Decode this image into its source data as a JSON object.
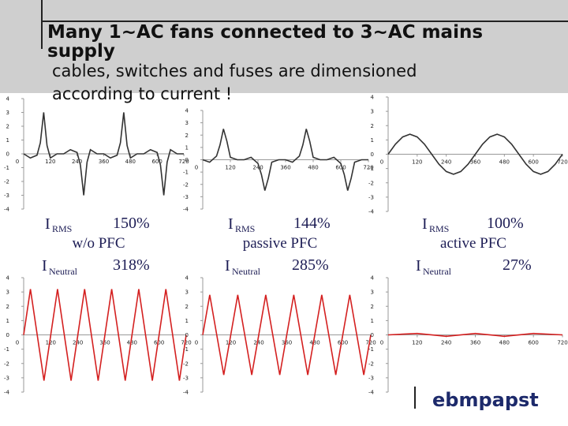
{
  "slide": {
    "title": "Many 1~AC fans connected to 3~AC mains supply",
    "subtitle": "cables, switches and fuses are dimensioned according to current !",
    "logo": "ebmpapst",
    "stats": [
      {
        "irms_label": "I",
        "irms_sub": "RMS",
        "irms_value": "150%",
        "pfc": "w/o PFC",
        "ineutral_label": "I",
        "ineutral_sub": "Neutral",
        "ineutral_value": "318%"
      },
      {
        "irms_label": "I",
        "irms_sub": "RMS",
        "irms_value": "144%",
        "pfc": "passive PFC",
        "ineutral_label": "I",
        "ineutral_sub": "Neutral",
        "ineutral_value": "285%"
      },
      {
        "irms_label": "I",
        "irms_sub": "RMS",
        "irms_value": "100%",
        "pfc": "active PFC",
        "ineutral_label": "I",
        "ineutral_sub": "Neutral",
        "ineutral_value": "27%"
      }
    ]
  },
  "chart_data": [
    {
      "type": "line",
      "color": "#333333",
      "xlim": [
        0,
        720
      ],
      "ylim": [
        -4,
        4
      ],
      "xticks": [
        0,
        120,
        240,
        360,
        480,
        600,
        720
      ],
      "yticks": [
        -4,
        -3,
        -2,
        -1,
        0,
        1,
        2,
        3,
        4
      ],
      "x": [
        0,
        30,
        60,
        75,
        90,
        105,
        120,
        150,
        180,
        210,
        240,
        255,
        270,
        285,
        300,
        330,
        360,
        390,
        420,
        435,
        450,
        465,
        480,
        510,
        540,
        570,
        600,
        615,
        630,
        645,
        660,
        690,
        720
      ],
      "values": [
        0,
        -0.3,
        -0.1,
        0.8,
        3,
        0.6,
        -0.3,
        0,
        0,
        0.3,
        0.1,
        -0.8,
        -3,
        -0.6,
        0.3,
        0,
        0,
        -0.3,
        -0.1,
        0.8,
        3,
        0.6,
        -0.3,
        0,
        0,
        0.3,
        0.1,
        -0.8,
        -3,
        -0.6,
        0.3,
        0,
        0
      ]
    },
    {
      "type": "line",
      "color": "#333333",
      "xlim": [
        0,
        720
      ],
      "ylim": [
        -4,
        4
      ],
      "xticks": [
        0,
        120,
        240,
        360,
        480,
        600,
        720
      ],
      "yticks": [
        -4,
        -3,
        -2,
        -1,
        0,
        1,
        2,
        3,
        4
      ],
      "x": [
        0,
        30,
        60,
        75,
        90,
        105,
        120,
        150,
        180,
        210,
        240,
        255,
        270,
        285,
        300,
        330,
        360,
        390,
        420,
        435,
        450,
        465,
        480,
        510,
        540,
        570,
        600,
        615,
        630,
        645,
        660,
        690,
        720
      ],
      "values": [
        0,
        -0.2,
        0.3,
        1.2,
        2.5,
        1.5,
        0.2,
        0,
        0,
        0.2,
        -0.3,
        -1.2,
        -2.5,
        -1.5,
        -0.2,
        0,
        0,
        -0.2,
        0.3,
        1.2,
        2.5,
        1.5,
        0.2,
        0,
        0,
        0.2,
        -0.3,
        -1.2,
        -2.5,
        -1.5,
        -0.2,
        0,
        0
      ]
    },
    {
      "type": "line",
      "color": "#333333",
      "xlim": [
        0,
        720
      ],
      "ylim": [
        -4,
        4
      ],
      "xticks": [
        0,
        120,
        240,
        360,
        480,
        600,
        720
      ],
      "yticks": [
        -4,
        -3,
        -2,
        -1,
        0,
        1,
        2,
        3,
        4
      ],
      "x": [
        0,
        30,
        60,
        90,
        120,
        150,
        180,
        210,
        240,
        270,
        300,
        330,
        360,
        390,
        420,
        450,
        480,
        510,
        540,
        570,
        600,
        630,
        660,
        690,
        720
      ],
      "values": [
        0,
        0.7,
        1.21,
        1.4,
        1.21,
        0.7,
        0,
        -0.7,
        -1.21,
        -1.4,
        -1.21,
        -0.7,
        0,
        0.7,
        1.21,
        1.4,
        1.21,
        0.7,
        0,
        -0.7,
        -1.21,
        -1.4,
        -1.21,
        -0.7,
        0
      ]
    },
    {
      "type": "line",
      "color": "#d42020",
      "xlim": [
        0,
        720
      ],
      "ylim": [
        -4,
        4
      ],
      "xticks": [
        0,
        120,
        240,
        360,
        480,
        600,
        720
      ],
      "yticks": [
        -4,
        -3,
        -2,
        -1,
        0,
        1,
        2,
        3,
        4
      ],
      "x": [
        0,
        30,
        60,
        90,
        120,
        150,
        180,
        210,
        240,
        270,
        300,
        330,
        360,
        390,
        420,
        450,
        480,
        510,
        540,
        570,
        600,
        630,
        660,
        690,
        720
      ],
      "values": [
        0,
        3.2,
        0,
        -3.2,
        0,
        3.2,
        0,
        -3.2,
        0,
        3.2,
        0,
        -3.2,
        0,
        3.2,
        0,
        -3.2,
        0,
        3.2,
        0,
        -3.2,
        0,
        3.2,
        0,
        -3.2,
        0
      ]
    },
    {
      "type": "line",
      "color": "#d42020",
      "xlim": [
        0,
        720
      ],
      "ylim": [
        -4,
        4
      ],
      "xticks": [
        0,
        120,
        240,
        360,
        480,
        600,
        720
      ],
      "yticks": [
        -4,
        -3,
        -2,
        -1,
        0,
        1,
        2,
        3,
        4
      ],
      "x": [
        0,
        30,
        60,
        90,
        120,
        150,
        180,
        210,
        240,
        270,
        300,
        330,
        360,
        390,
        420,
        450,
        480,
        510,
        540,
        570,
        600,
        630,
        660,
        690,
        720
      ],
      "values": [
        0,
        2.8,
        0,
        -2.8,
        0,
        2.8,
        0,
        -2.8,
        0,
        2.8,
        0,
        -2.8,
        0,
        2.8,
        0,
        -2.8,
        0,
        2.8,
        0,
        -2.8,
        0,
        2.8,
        0,
        -2.8,
        0
      ]
    },
    {
      "type": "line",
      "color": "#d42020",
      "xlim": [
        0,
        720
      ],
      "ylim": [
        -4,
        4
      ],
      "xticks": [
        0,
        120,
        240,
        360,
        480,
        600,
        720
      ],
      "yticks": [
        -4,
        -3,
        -2,
        -1,
        0,
        1,
        2,
        3,
        4
      ],
      "x": [
        0,
        120,
        240,
        360,
        480,
        600,
        720
      ],
      "values": [
        0,
        0.1,
        -0.1,
        0.1,
        -0.1,
        0.1,
        0
      ]
    }
  ]
}
